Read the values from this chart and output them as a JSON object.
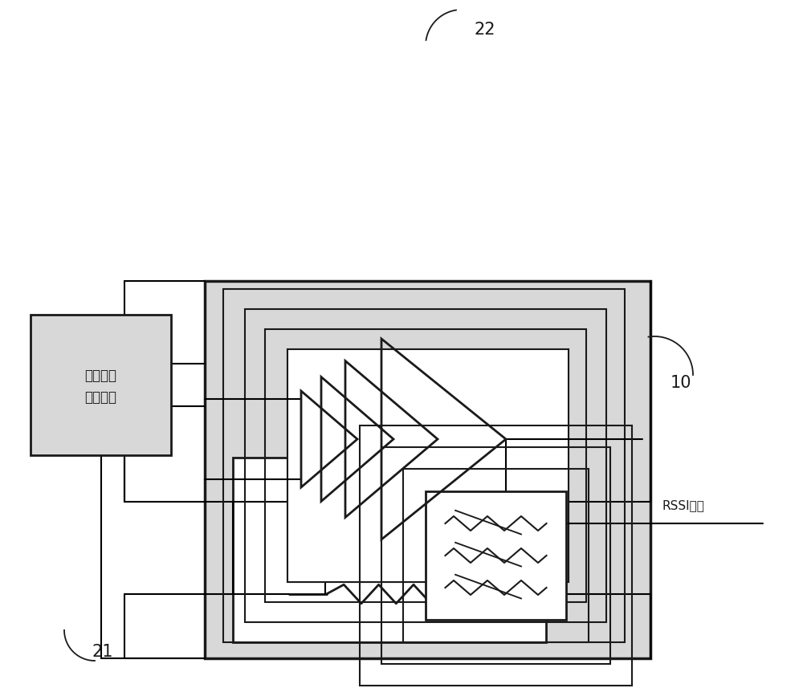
{
  "bg_color": "#ffffff",
  "line_color": "#1a1a1a",
  "box_fill_gray": "#d8d8d8",
  "box_fill_white": "#ffffff",
  "label_22": "22",
  "label_10": "10",
  "label_21": "21",
  "label_analog_line1": "模拟偏差",
  "label_analog_line2": "矫正电路",
  "label_rssi": "RSSI输出",
  "figsize": [
    10.0,
    8.57
  ],
  "dpi": 100
}
